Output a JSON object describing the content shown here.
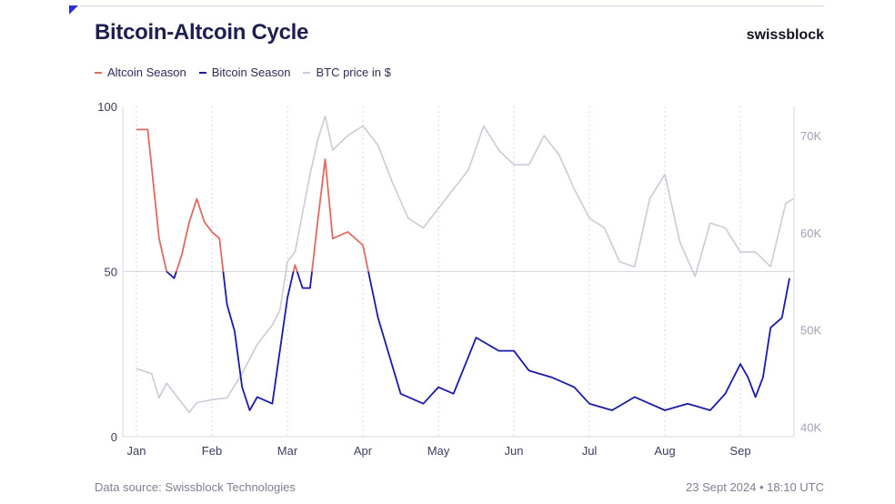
{
  "header": {
    "title": "Bitcoin-Altcoin Cycle",
    "brand": "swissblock"
  },
  "footer": {
    "source": "Data source: Swissblock Technologies",
    "timestamp": "23 Sept 2024 • 18:10 UTC"
  },
  "colors": {
    "altcoin": "#e06a60",
    "bitcoin": "#1a1aa8",
    "btc": "#c9cbd8",
    "grid": "#d6d8e2"
  },
  "chart_data": {
    "type": "line",
    "title": "Bitcoin-Altcoin Cycle",
    "x_labels": [
      "Jan",
      "Feb",
      "Mar",
      "Apr",
      "May",
      "Jun",
      "Jul",
      "Aug",
      "Sep"
    ],
    "y_left": {
      "ticks": [
        "100",
        "50",
        "0"
      ],
      "ylim": [
        0,
        100
      ]
    },
    "y_right": {
      "ticks": [
        "70K",
        "60K",
        "50K",
        "40K"
      ],
      "ylim": [
        39000,
        73000
      ]
    },
    "threshold": 50,
    "grid": "vertical dotted at month starts",
    "legend_position": "top-left",
    "legend": [
      {
        "name": "Altcoin Season",
        "color": "#e06a60"
      },
      {
        "name": "Bitcoin Season",
        "color": "#1a1aa8"
      },
      {
        "name": "BTC price in $",
        "color": "#c9cbd8"
      }
    ],
    "series": [
      {
        "name": "Bitcoin-Altcoin Cycle index",
        "axis": "left",
        "note": "above 50 = Altcoin Season, below 50 = Bitcoin Season",
        "x": [
          0,
          0.15,
          0.3,
          0.4,
          0.5,
          0.6,
          0.65,
          0.7,
          0.8,
          0.9,
          1.0,
          1.1,
          1.2,
          1.3,
          1.4,
          1.5,
          1.6,
          1.8,
          2.0,
          2.1,
          2.2,
          2.3,
          2.4,
          2.5,
          2.6,
          2.8,
          3.0,
          3.2,
          3.5,
          3.8,
          4.0,
          4.2,
          4.5,
          4.8,
          5.0,
          5.2,
          5.5,
          5.8,
          6.0,
          6.3,
          6.6,
          6.8,
          7.0,
          7.3,
          7.6,
          7.8,
          8.0,
          8.1,
          8.2,
          8.3,
          8.4,
          8.55,
          8.65
        ],
        "y": [
          93,
          93,
          60,
          50,
          48,
          55,
          60,
          65,
          72,
          65,
          62,
          60,
          40,
          32,
          15,
          8,
          12,
          10,
          42,
          52,
          45,
          45,
          65,
          84,
          60,
          62,
          58,
          36,
          13,
          10,
          15,
          13,
          30,
          26,
          26,
          20,
          18,
          15,
          10,
          8,
          12,
          10,
          8,
          10,
          8,
          13,
          22,
          18,
          12,
          18,
          33,
          36,
          48
        ]
      },
      {
        "name": "BTC price in $",
        "axis": "right",
        "x": [
          0,
          0.2,
          0.3,
          0.4,
          0.5,
          0.6,
          0.7,
          0.8,
          1.0,
          1.2,
          1.4,
          1.6,
          1.8,
          1.9,
          2.0,
          2.1,
          2.2,
          2.3,
          2.4,
          2.5,
          2.6,
          2.8,
          3.0,
          3.2,
          3.4,
          3.6,
          3.8,
          4.0,
          4.2,
          4.4,
          4.6,
          4.8,
          5.0,
          5.2,
          5.4,
          5.6,
          5.8,
          6.0,
          6.2,
          6.4,
          6.6,
          6.8,
          7.0,
          7.2,
          7.4,
          7.6,
          7.8,
          8.0,
          8.2,
          8.4,
          8.6,
          8.7
        ],
        "y": [
          46000,
          45500,
          43000,
          44500,
          43500,
          42500,
          41500,
          42500,
          42800,
          43000,
          45500,
          48500,
          50500,
          52000,
          57000,
          58000,
          62000,
          66000,
          69500,
          72000,
          68500,
          70000,
          71000,
          69000,
          65000,
          61500,
          60500,
          62500,
          64500,
          66500,
          71000,
          68500,
          67000,
          67000,
          70000,
          68000,
          64500,
          61500,
          60500,
          57000,
          56500,
          63500,
          66000,
          59000,
          55500,
          61000,
          60500,
          58000,
          58000,
          56500,
          63000,
          63500
        ]
      }
    ]
  }
}
